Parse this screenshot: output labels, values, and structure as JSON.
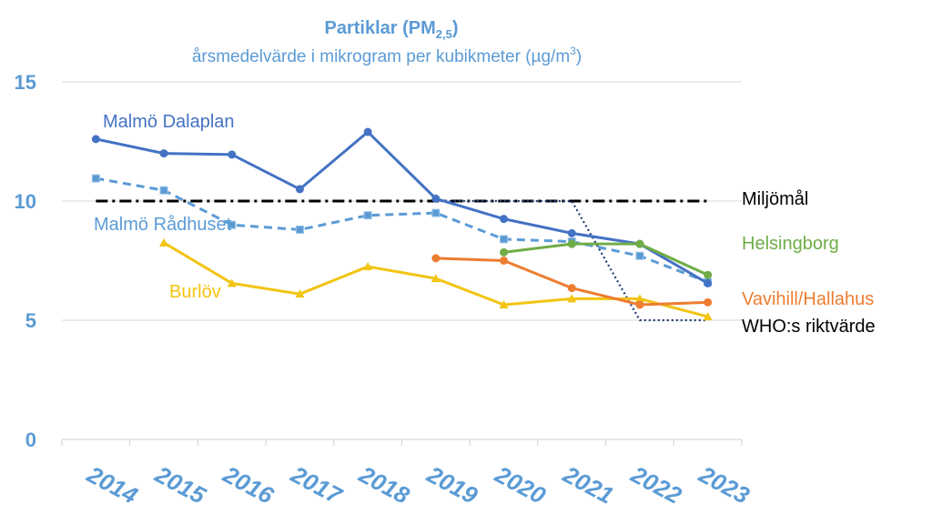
{
  "chart_data": {
    "type": "line",
    "title": "Partiklar (PM",
    "title_subscript": "2,5",
    "title_close": ")",
    "subtitle": "årsmedelvärde i mikrogram per kubikmeter (µg/m",
    "subtitle_superscript": "3",
    "subtitle_close": ")",
    "categories": [
      "2014",
      "2015",
      "2016",
      "2017",
      "2018",
      "2019",
      "2020",
      "2021",
      "2022",
      "2023"
    ],
    "ylim": [
      0,
      15
    ],
    "yticks": [
      "0",
      "5",
      "10",
      "15"
    ],
    "ytick_values": [
      0,
      5,
      10,
      15
    ],
    "grid": true,
    "series": [
      {
        "name": "Malmö Dalaplan",
        "color": "#4472c4",
        "style": "solid",
        "marker": "circle",
        "values": [
          12.6,
          12.0,
          11.95,
          10.5,
          12.9,
          10.1,
          9.25,
          8.65,
          8.2,
          6.55
        ]
      },
      {
        "name": "Malmö Rådhuset",
        "color": "#5b9bd5",
        "style": "dashed",
        "marker": "square",
        "values": [
          10.95,
          10.45,
          9.0,
          8.8,
          9.4,
          9.5,
          8.4,
          8.3,
          7.7,
          6.6
        ]
      },
      {
        "name": "Burlöv",
        "color": "#f2c413",
        "style": "solid",
        "marker": "triangle",
        "values": [
          null,
          8.25,
          6.55,
          6.1,
          7.25,
          6.75,
          5.65,
          5.9,
          5.9,
          5.15
        ]
      },
      {
        "name": "Helsingborg",
        "color": "#70ad47",
        "style": "solid",
        "marker": "circle",
        "values": [
          null,
          null,
          null,
          null,
          null,
          null,
          7.85,
          8.2,
          8.2,
          6.9
        ]
      },
      {
        "name": "Vavihill/Hallahus",
        "color": "#ed7d31",
        "style": "solid",
        "marker": "circle",
        "values": [
          null,
          null,
          null,
          null,
          null,
          7.6,
          7.5,
          6.35,
          5.65,
          5.75
        ]
      },
      {
        "name": "Miljömål",
        "color": "#000000",
        "style": "dashdot",
        "marker": "none",
        "values": [
          10,
          10,
          10,
          10,
          10,
          10,
          10,
          10,
          10,
          10
        ]
      },
      {
        "name": "WHO:s riktvärde",
        "color": "#1f3b73",
        "style": "dotted",
        "marker": "none",
        "x": [
          5,
          7,
          8,
          9
        ],
        "values": [
          10,
          10,
          5,
          5
        ]
      }
    ],
    "labels": [
      {
        "text": "Malmö Dalaplan",
        "color": "#4472c4"
      },
      {
        "text": "Malmö Rådhuset",
        "color": "#5b9bd5"
      },
      {
        "text": "Burlöv",
        "color": "#f2c413"
      },
      {
        "text": "Miljömål",
        "color": "#000000"
      },
      {
        "text": "Helsingborg",
        "color": "#70ad47"
      },
      {
        "text": "Vavihill/Hallahus",
        "color": "#ed7d31"
      },
      {
        "text": "WHO:s riktvärde",
        "color": "#000000"
      }
    ],
    "colors": {
      "title": "#5b9bd5",
      "axis_labels": "#5b9bd5",
      "grid": "#d9d9d9"
    }
  }
}
